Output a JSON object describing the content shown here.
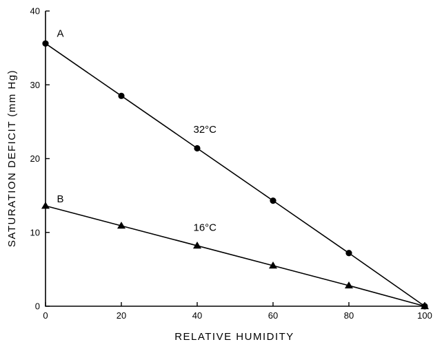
{
  "chart_data": {
    "type": "line",
    "title": "",
    "xlabel": "RELATIVE HUMIDITY",
    "ylabel": "SATURATION DEFICIT  (mm Hg)",
    "xlim": [
      0,
      100
    ],
    "ylim": [
      0,
      40
    ],
    "xticks": [
      0,
      20,
      40,
      60,
      80,
      100
    ],
    "yticks": [
      0,
      10,
      20,
      30,
      40
    ],
    "grid": false,
    "series": [
      {
        "name": "32°C",
        "marker": "circle",
        "x": [
          0,
          20,
          40,
          60,
          80,
          100
        ],
        "y": [
          35.6,
          28.5,
          21.4,
          14.3,
          7.2,
          0
        ]
      },
      {
        "name": "16°C",
        "marker": "triangle",
        "x": [
          0,
          20,
          40,
          60,
          80,
          100
        ],
        "y": [
          13.6,
          10.9,
          8.2,
          5.5,
          2.8,
          0
        ]
      }
    ],
    "annotations": [
      {
        "text": "A",
        "x": 3,
        "y": 36.5
      },
      {
        "text": "32°C",
        "x": 39,
        "y": 23.5
      },
      {
        "text": "B",
        "x": 3,
        "y": 14.1
      },
      {
        "text": "16°C",
        "x": 39,
        "y": 10.2
      }
    ]
  }
}
